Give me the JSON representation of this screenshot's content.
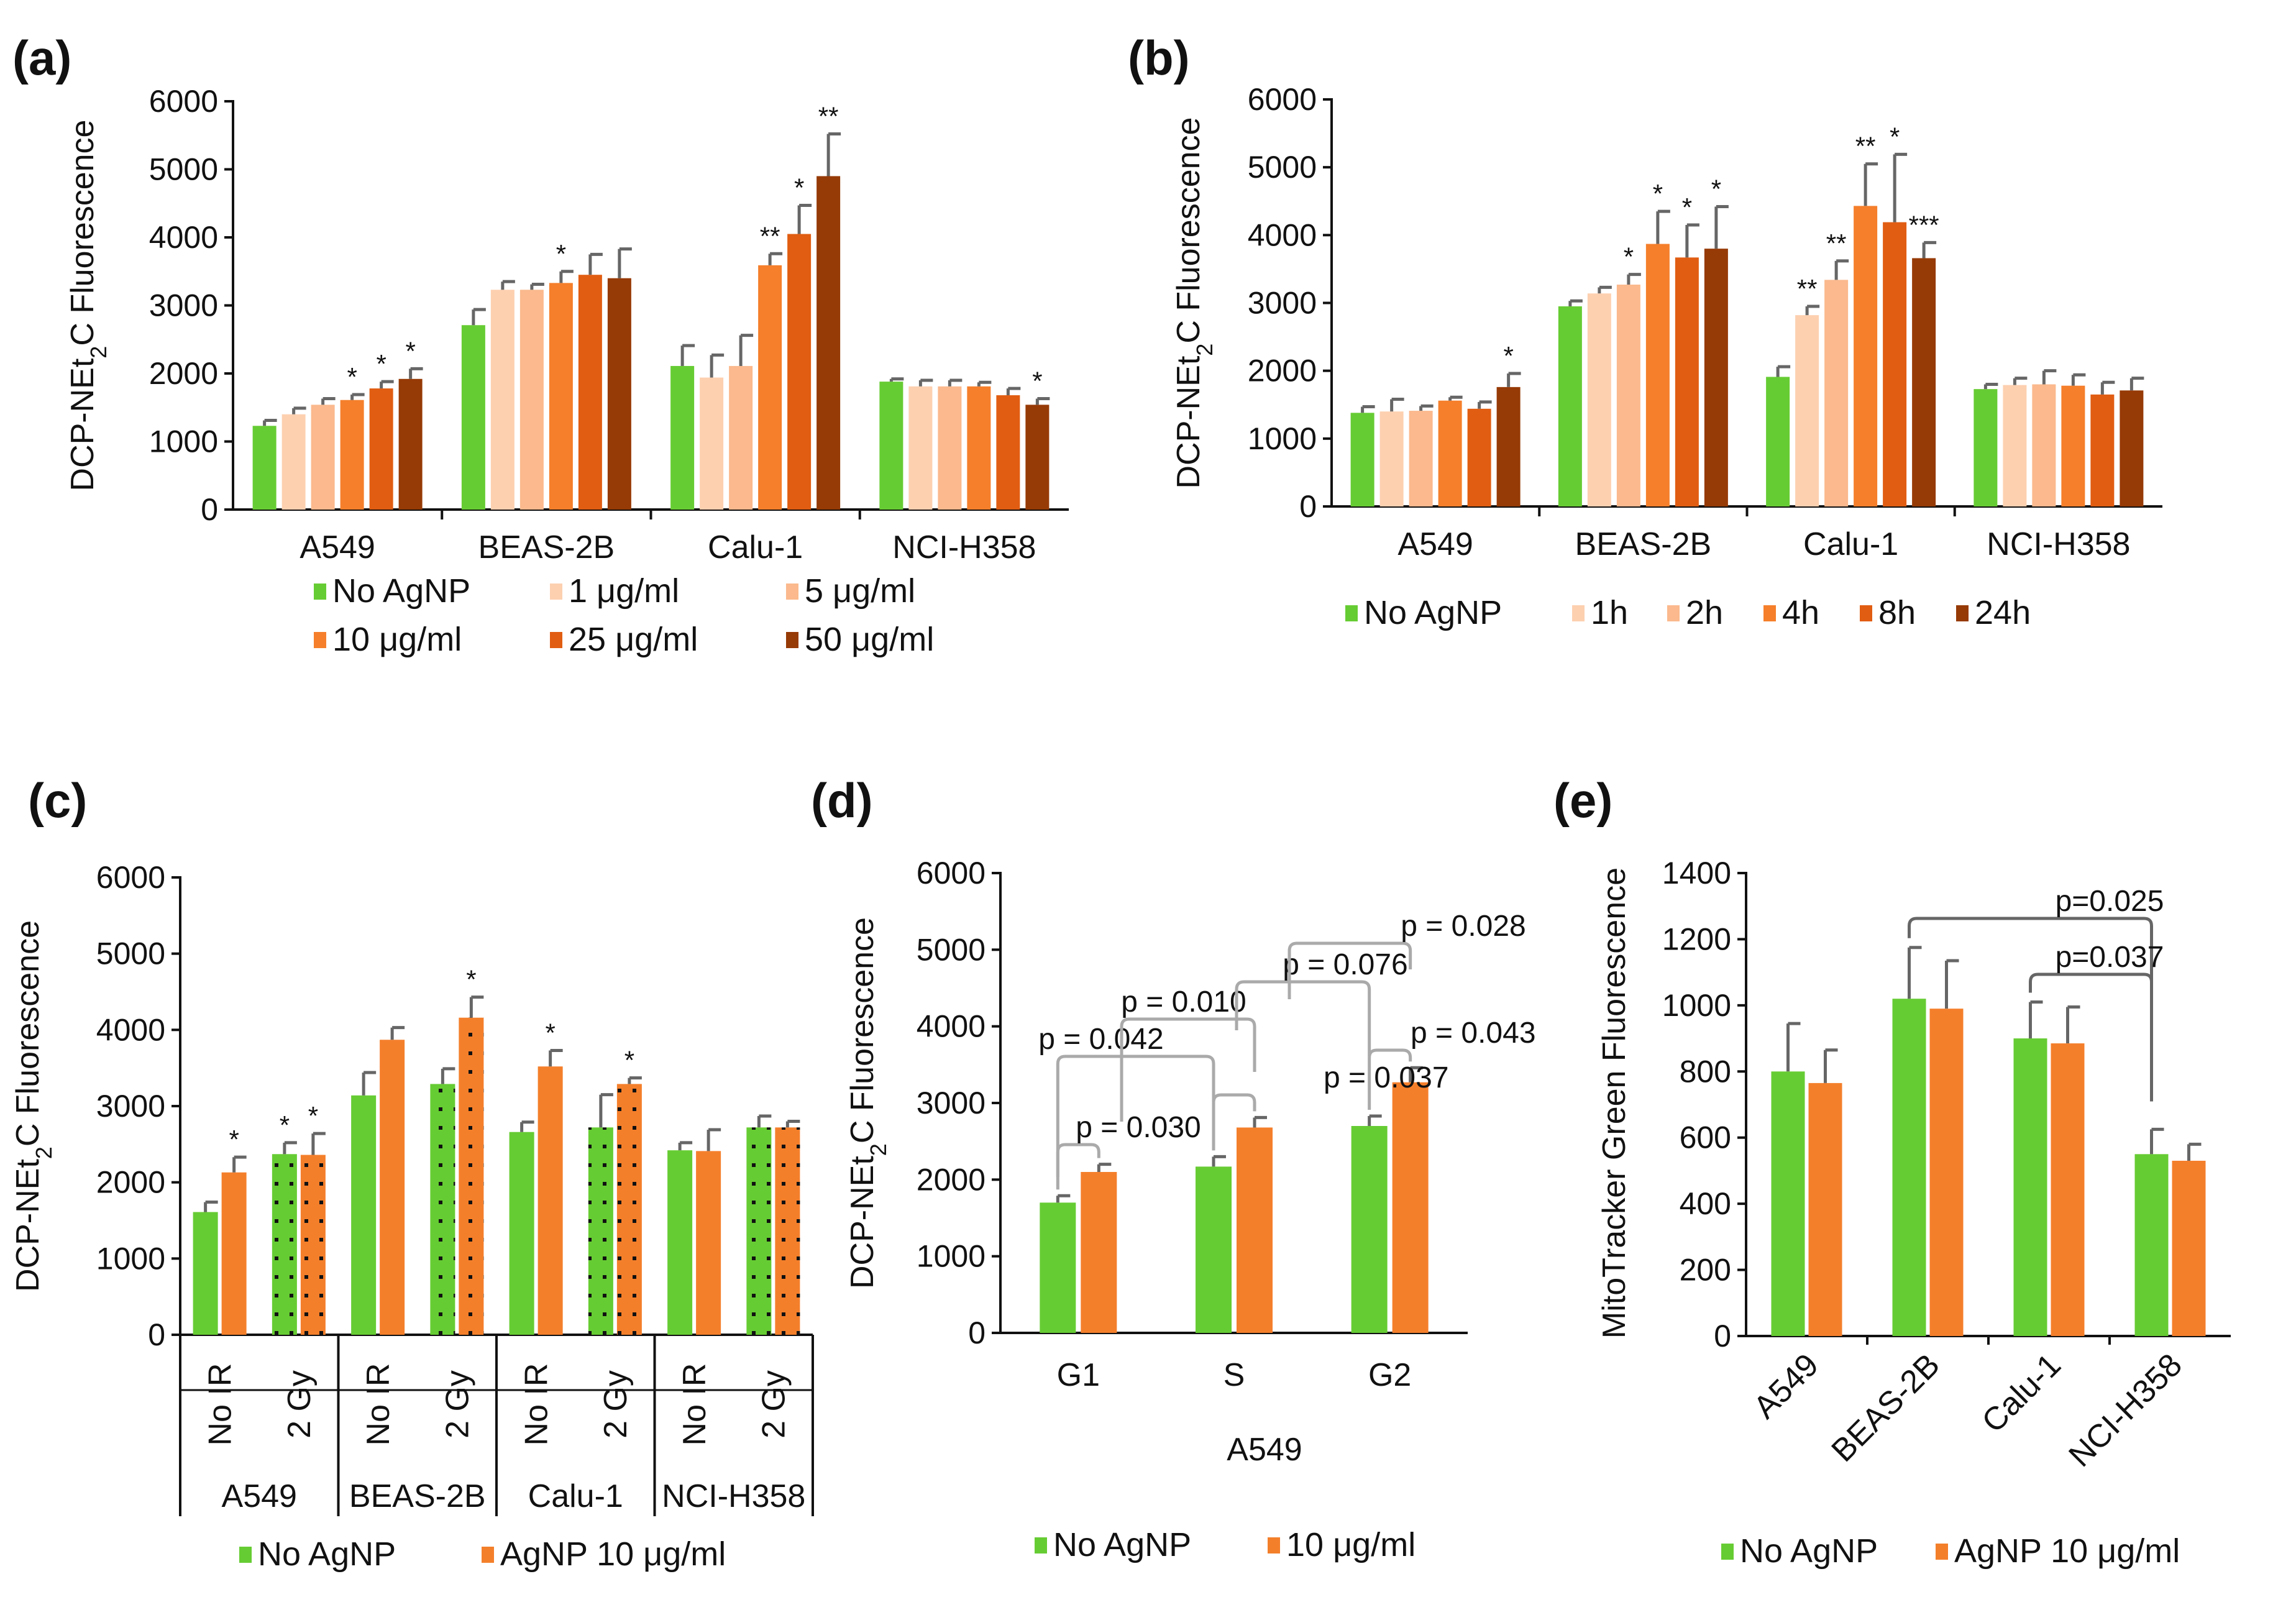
{
  "colors": {
    "green": "#66cc33",
    "c1": "#fdd0b0",
    "c2": "#fbb98d",
    "c3": "#f57f2b",
    "c4": "#e15d12",
    "c5": "#963a06",
    "orange": "#f47f2b",
    "err": "#666666",
    "bracket": "#aaaaaa"
  },
  "panels": {
    "a": {
      "label": "(a)"
    },
    "b": {
      "label": "(b)"
    },
    "c": {
      "label": "(c)"
    },
    "d": {
      "label": "(d)"
    },
    "e": {
      "label": "(e)"
    }
  },
  "chart_data": [
    {
      "id": "a",
      "type": "bar",
      "label": "(a)",
      "ylabel": "DCP-NEt2C Fluorescence",
      "ylim": [
        0,
        6000
      ],
      "yticks": [
        0,
        1000,
        2000,
        3000,
        4000,
        5000,
        6000
      ],
      "categories": [
        "A549",
        "BEAS-2B",
        "Calu-1",
        "NCI-H358"
      ],
      "series": [
        {
          "name": "No AgNP",
          "color": "#66cc33",
          "values": [
            1230,
            2710,
            2110,
            1880
          ],
          "err": [
            80,
            230,
            300,
            40
          ],
          "sig": [
            "",
            "",
            "",
            ""
          ]
        },
        {
          "name": "1 μg/ml",
          "color": "#fdd0b0",
          "values": [
            1400,
            3230,
            1940,
            1810
          ],
          "err": [
            90,
            120,
            330,
            90
          ],
          "sig": [
            "",
            "",
            "",
            ""
          ]
        },
        {
          "name": "5 μg/ml",
          "color": "#fbb98d",
          "values": [
            1540,
            3230,
            2110,
            1810
          ],
          "err": [
            90,
            80,
            450,
            90
          ],
          "sig": [
            "",
            "",
            "",
            ""
          ]
        },
        {
          "name": "10 μg/ml",
          "color": "#f57f2b",
          "values": [
            1610,
            3330,
            3590,
            1810
          ],
          "err": [
            80,
            170,
            170,
            60
          ],
          "sig": [
            "*",
            "*",
            "**",
            ""
          ]
        },
        {
          "name": "25 μg/ml",
          "color": "#e15d12",
          "values": [
            1780,
            3450,
            4050,
            1680
          ],
          "err": [
            100,
            300,
            420,
            100
          ],
          "sig": [
            "*",
            "",
            "*",
            ""
          ]
        },
        {
          "name": "50 μg/ml",
          "color": "#963a06",
          "values": [
            1920,
            3400,
            4900,
            1540
          ],
          "err": [
            150,
            430,
            620,
            90
          ],
          "sig": [
            "*",
            "",
            "**",
            "*"
          ]
        }
      ]
    },
    {
      "id": "b",
      "type": "bar",
      "label": "(b)",
      "ylabel": "DCP-NEt2C Fluorescence",
      "ylim": [
        0,
        6000
      ],
      "yticks": [
        0,
        1000,
        2000,
        3000,
        4000,
        5000,
        6000
      ],
      "categories": [
        "A549",
        "BEAS-2B",
        "Calu-1",
        "NCI-H358"
      ],
      "series": [
        {
          "name": "No AgNP",
          "color": "#66cc33",
          "values": [
            1380,
            2950,
            1910,
            1730
          ],
          "err": [
            90,
            80,
            150,
            70
          ],
          "sig": [
            "",
            "",
            "",
            ""
          ]
        },
        {
          "name": "1h",
          "color": "#fdd0b0",
          "values": [
            1400,
            3140,
            2820,
            1790
          ],
          "err": [
            180,
            90,
            130,
            100
          ],
          "sig": [
            "",
            "",
            "**",
            ""
          ]
        },
        {
          "name": "2h",
          "color": "#fbb98d",
          "values": [
            1410,
            3270,
            3340,
            1800
          ],
          "err": [
            70,
            150,
            280,
            200
          ],
          "sig": [
            "",
            "*",
            "**",
            ""
          ]
        },
        {
          "name": "4h",
          "color": "#f57f2b",
          "values": [
            1560,
            3870,
            4430,
            1780
          ],
          "err": [
            50,
            480,
            620,
            160
          ],
          "sig": [
            "",
            "*",
            "**",
            ""
          ]
        },
        {
          "name": "8h",
          "color": "#e15d12",
          "values": [
            1440,
            3670,
            4190,
            1650
          ],
          "err": [
            100,
            480,
            1000,
            180
          ],
          "sig": [
            "",
            "*",
            "*",
            ""
          ]
        },
        {
          "name": "24h",
          "color": "#963a06",
          "values": [
            1760,
            3800,
            3660,
            1710
          ],
          "err": [
            200,
            620,
            230,
            180
          ],
          "sig": [
            "*",
            "*",
            "***",
            ""
          ]
        }
      ]
    },
    {
      "id": "c",
      "type": "bar",
      "label": "(c)",
      "ylabel": "DCP-NEt2C Fluorescence",
      "ylim": [
        0,
        6000
      ],
      "yticks": [
        0,
        1000,
        2000,
        3000,
        4000,
        5000,
        6000
      ],
      "groups": [
        "A549",
        "BEAS-2B",
        "Calu-1",
        "NCI-H358"
      ],
      "subcategories": [
        "No IR",
        "2 Gy"
      ],
      "series": [
        {
          "name": "No AgNP",
          "color": "#66cc33",
          "values": [
            1610,
            2370,
            3140,
            3290,
            2660,
            2720,
            2420,
            2720
          ],
          "err": [
            130,
            150,
            300,
            200,
            130,
            430,
            100,
            150
          ],
          "sig": [
            "",
            "*",
            "",
            "",
            "",
            "",
            "",
            ""
          ]
        },
        {
          "name": "AgNP 10 μg/ml",
          "color": "#f47f2b",
          "values": [
            2130,
            2360,
            3870,
            4160,
            3520,
            3290,
            2410,
            2720
          ],
          "err": [
            200,
            280,
            160,
            270,
            210,
            80,
            280,
            80
          ],
          "sig": [
            "*",
            "*",
            "",
            "*",
            "*",
            "*",
            "",
            ""
          ]
        }
      ],
      "hatched_subcategory": "2 Gy"
    },
    {
      "id": "d",
      "type": "bar",
      "label": "(d)",
      "ylabel": "DCP-NEt2C Fluorescence",
      "xlabel": "A549",
      "ylim": [
        0,
        6000
      ],
      "yticks": [
        0,
        1000,
        2000,
        3000,
        4000,
        5000,
        6000
      ],
      "categories": [
        "G1",
        "S",
        "G2"
      ],
      "series": [
        {
          "name": "No AgNP",
          "color": "#66cc33",
          "values": [
            1700,
            2170,
            2700
          ],
          "err": [
            90,
            130,
            130
          ]
        },
        {
          "name": "10 μg/ml",
          "color": "#f47f2b",
          "values": [
            2100,
            2680,
            3270
          ],
          "err": [
            100,
            130,
            190
          ]
        }
      ],
      "annotations": [
        "p = 0.030",
        "p = 0.037",
        "p = 0.043",
        "p = 0.042",
        "p = 0.010",
        "p = 0.076",
        "p = 0.028"
      ]
    },
    {
      "id": "e",
      "type": "bar",
      "label": "(e)",
      "ylabel": "MitoTracker Green Fluorescence",
      "ylim": [
        0,
        1400
      ],
      "yticks": [
        0,
        200,
        400,
        600,
        800,
        1000,
        1200,
        1400
      ],
      "categories": [
        "A549",
        "BEAS-2B",
        "Calu-1",
        "NCI-H358"
      ],
      "series": [
        {
          "name": "No AgNP",
          "color": "#66cc33",
          "values": [
            800,
            1020,
            900,
            550
          ],
          "err": [
            145,
            155,
            110,
            75
          ]
        },
        {
          "name": "AgNP 10 μg/ml",
          "color": "#f47f2b",
          "values": [
            765,
            990,
            885,
            530
          ],
          "err": [
            100,
            145,
            110,
            50
          ]
        }
      ],
      "annotations": [
        "p=0.025",
        "p=0.037"
      ]
    }
  ]
}
